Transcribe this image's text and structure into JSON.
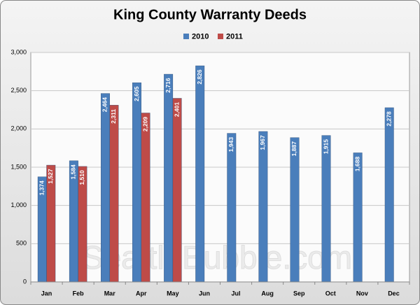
{
  "chart_data": {
    "type": "bar",
    "title": "King County Warranty Deeds",
    "watermark": "SeattleBubble.com",
    "categories": [
      "Jan",
      "Feb",
      "Mar",
      "Apr",
      "May",
      "Jun",
      "Jul",
      "Aug",
      "Sep",
      "Oct",
      "Nov",
      "Dec"
    ],
    "series": [
      {
        "name": "2010",
        "color": "#4a7ebb",
        "values": [
          1374,
          1584,
          2464,
          2605,
          2716,
          2826,
          1943,
          1967,
          1887,
          1915,
          1688,
          2278
        ],
        "value_labels": [
          "1,374",
          "1,584",
          "2,464",
          "2,605",
          "2,716",
          "2,826",
          "1,943",
          "1,967",
          "1,887",
          "1,915",
          "1,688",
          "2,278"
        ]
      },
      {
        "name": "2011",
        "color": "#be4b48",
        "values": [
          1527,
          1510,
          2311,
          2209,
          2401,
          null,
          null,
          null,
          null,
          null,
          null,
          null
        ],
        "value_labels": [
          "1,527",
          "1,510",
          "2,311",
          "2,209",
          "2,401",
          null,
          null,
          null,
          null,
          null,
          null,
          null
        ]
      }
    ],
    "ylim": [
      0,
      3000
    ],
    "yticks": [
      0,
      500,
      {
        "value": 1000,
        "label": "1,000"
      },
      {
        "value": 1500,
        "label": "1,500"
      },
      {
        "value": 2000,
        "label": "2,000"
      },
      {
        "value": 2500,
        "label": "2,500"
      },
      {
        "value": 3000,
        "label": "3,000"
      }
    ],
    "grid": true,
    "legend": "top"
  }
}
